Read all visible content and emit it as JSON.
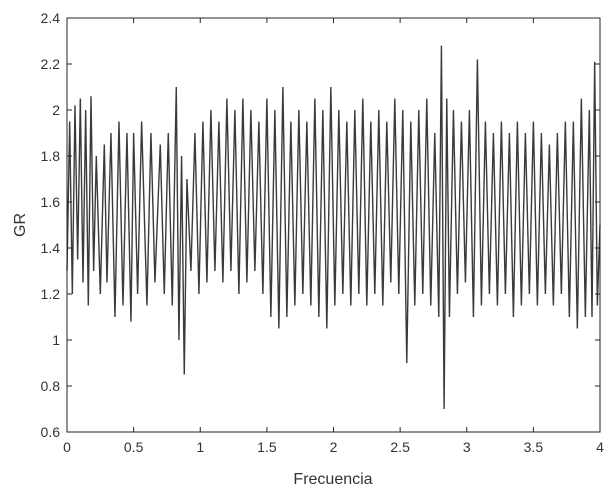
{
  "chart_data": {
    "type": "line",
    "title": "",
    "xlabel": "Frecuencia",
    "ylabel": "GR",
    "xlim": [
      0,
      4
    ],
    "ylim": [
      0.6,
      2.4
    ],
    "xticks": [
      0,
      0.5,
      1,
      1.5,
      2,
      2.5,
      3,
      3.5,
      4
    ],
    "xtick_labels": [
      "0",
      "0.5",
      "1",
      "1.5",
      "2",
      "2.5",
      "3",
      "3.5",
      "4"
    ],
    "yticks": [
      0.6,
      0.8,
      1,
      1.2,
      1.4,
      1.6,
      1.8,
      2,
      2.2,
      2.4
    ],
    "ytick_labels": [
      "0.6",
      "0.8",
      "1",
      "1.2",
      "1.4",
      "1.6",
      "1.8",
      "2",
      "2.2",
      "2.4"
    ],
    "grid": false,
    "line_color": "#3a3a3a",
    "series": [
      {
        "name": "",
        "x": [
          0.0,
          0.02,
          0.04,
          0.06,
          0.08,
          0.1,
          0.12,
          0.14,
          0.16,
          0.18,
          0.2,
          0.22,
          0.25,
          0.28,
          0.3,
          0.33,
          0.36,
          0.39,
          0.42,
          0.45,
          0.48,
          0.5,
          0.53,
          0.56,
          0.6,
          0.63,
          0.66,
          0.7,
          0.73,
          0.76,
          0.79,
          0.82,
          0.84,
          0.86,
          0.88,
          0.9,
          0.93,
          0.96,
          0.99,
          1.02,
          1.05,
          1.08,
          1.11,
          1.14,
          1.17,
          1.2,
          1.23,
          1.26,
          1.29,
          1.32,
          1.35,
          1.38,
          1.41,
          1.44,
          1.47,
          1.5,
          1.53,
          1.56,
          1.59,
          1.62,
          1.65,
          1.68,
          1.71,
          1.74,
          1.77,
          1.8,
          1.83,
          1.86,
          1.89,
          1.92,
          1.95,
          1.98,
          2.01,
          2.04,
          2.07,
          2.1,
          2.13,
          2.16,
          2.19,
          2.22,
          2.25,
          2.28,
          2.31,
          2.34,
          2.37,
          2.4,
          2.43,
          2.46,
          2.49,
          2.52,
          2.55,
          2.58,
          2.61,
          2.64,
          2.67,
          2.7,
          2.73,
          2.76,
          2.79,
          2.81,
          2.83,
          2.85,
          2.87,
          2.9,
          2.93,
          2.96,
          2.99,
          3.02,
          3.05,
          3.08,
          3.11,
          3.14,
          3.17,
          3.2,
          3.23,
          3.26,
          3.29,
          3.32,
          3.35,
          3.38,
          3.41,
          3.44,
          3.47,
          3.5,
          3.53,
          3.56,
          3.59,
          3.62,
          3.65,
          3.68,
          3.71,
          3.74,
          3.77,
          3.8,
          3.83,
          3.86,
          3.89,
          3.92,
          3.94,
          3.96,
          3.98,
          4.0
        ],
        "values": [
          1.3,
          1.95,
          1.2,
          2.02,
          1.35,
          2.05,
          1.25,
          2.0,
          1.15,
          2.06,
          1.3,
          1.8,
          1.2,
          1.85,
          1.25,
          1.9,
          1.1,
          1.95,
          1.15,
          1.9,
          1.08,
          1.9,
          1.2,
          1.95,
          1.15,
          1.9,
          1.25,
          1.85,
          1.2,
          1.9,
          1.15,
          2.1,
          1.0,
          1.8,
          0.85,
          1.7,
          1.3,
          1.9,
          1.2,
          1.95,
          1.25,
          2.0,
          1.3,
          1.95,
          1.25,
          2.05,
          1.3,
          2.0,
          1.2,
          2.05,
          1.25,
          2.0,
          1.3,
          1.95,
          1.2,
          2.05,
          1.1,
          2.0,
          1.05,
          2.1,
          1.1,
          1.95,
          1.15,
          2.0,
          1.2,
          1.95,
          1.15,
          2.05,
          1.1,
          2.0,
          1.05,
          2.1,
          1.15,
          2.0,
          1.2,
          1.95,
          1.15,
          2.0,
          1.2,
          2.05,
          1.15,
          1.95,
          1.2,
          2.0,
          1.15,
          1.95,
          1.25,
          2.05,
          1.2,
          2.0,
          0.9,
          1.95,
          1.15,
          2.0,
          1.2,
          2.05,
          1.15,
          1.9,
          1.1,
          2.28,
          0.7,
          2.05,
          1.1,
          2.0,
          1.2,
          1.95,
          1.25,
          2.0,
          1.1,
          2.22,
          1.15,
          1.95,
          1.2,
          1.9,
          1.15,
          1.95,
          1.2,
          1.9,
          1.1,
          1.95,
          1.15,
          1.9,
          1.2,
          1.95,
          1.15,
          1.9,
          1.2,
          1.85,
          1.15,
          1.9,
          1.2,
          1.95,
          1.1,
          1.95,
          1.05,
          2.05,
          1.1,
          2.0,
          1.1,
          2.21,
          1.15,
          1.5
        ]
      }
    ]
  }
}
